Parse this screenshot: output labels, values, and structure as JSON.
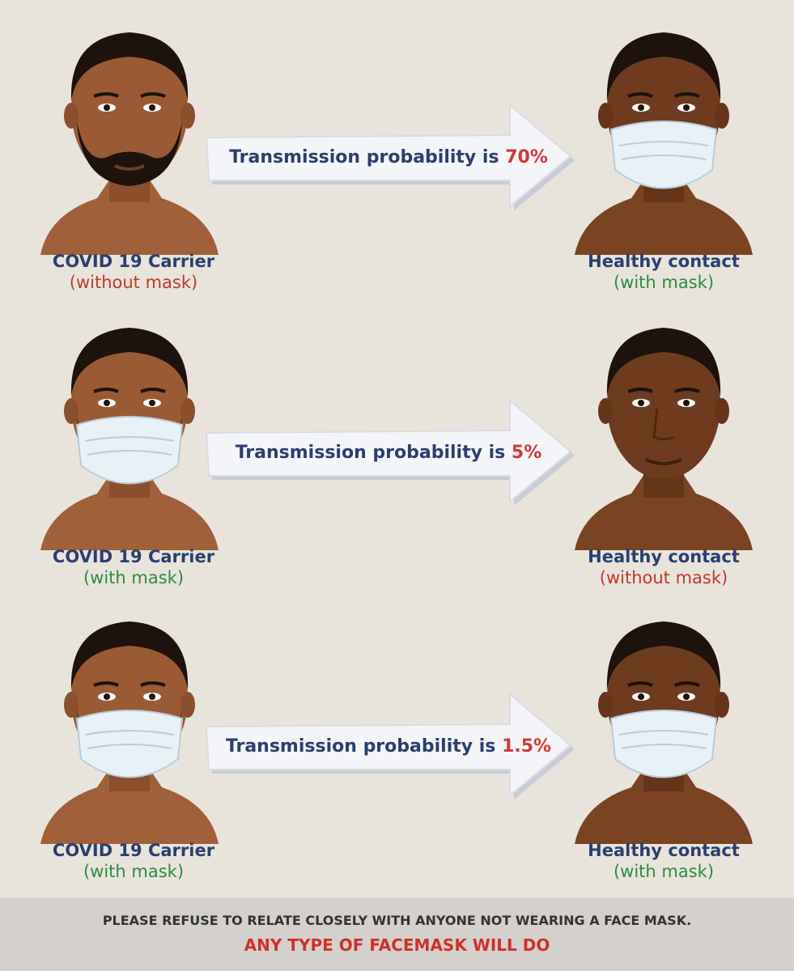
{
  "colors": {
    "background": "#e8e4dc",
    "navy": "#2b3f6e",
    "red": "#c0392b",
    "green": "#2e8b3e",
    "percent": "#d0383a",
    "skin": "#9a5a33",
    "skin_dark": "#6e3b1f",
    "hair": "#1d120c",
    "mask": "#e8f1f6"
  },
  "rows": [
    {
      "left_title": "COVID 19 Carrier",
      "left_status": "(without mask)",
      "arrow_prefix": "Transmission probability is",
      "arrow_percent": "70%",
      "right_title": "Healthy contact",
      "right_status": "(with mask)"
    },
    {
      "left_title": "COVID 19 Carrier",
      "left_status": "(with mask)",
      "arrow_prefix": "Transmission probability is",
      "arrow_percent": "5%",
      "right_title": "Healthy contact",
      "right_status": "(without mask)"
    },
    {
      "left_title": "COVID 19 Carrier",
      "left_status": "(with mask)",
      "arrow_prefix": "Transmission probability is",
      "arrow_percent": "1.5%",
      "right_title": "Healthy contact",
      "right_status": "(with mask)"
    }
  ],
  "footer": {
    "line1": "PLEASE REFUSE TO RELATE CLOSELY WITH ANYONE NOT WEARING A FACE MASK.",
    "line2": "ANY TYPE OF FACEMASK WILL DO"
  }
}
